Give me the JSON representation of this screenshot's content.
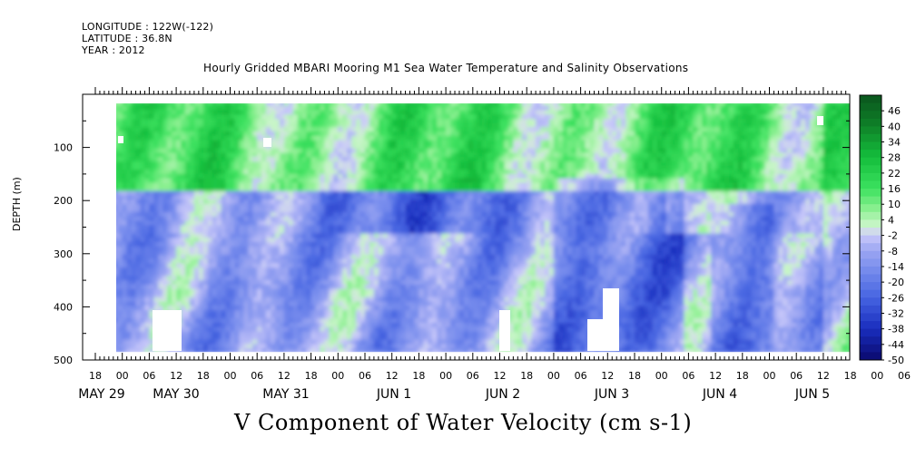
{
  "header": {
    "longitude": "LONGITUDE : 122W(-122)",
    "latitude": "LATITUDE : 36.8N",
    "year": "YEAR : 2012"
  },
  "chart_data": {
    "type": "heatmap",
    "title": "Hourly Gridded MBARI Mooring M1 Sea Water Temperature and Salinity Observations",
    "xlabel": "",
    "ylabel": "DEPTH (m)",
    "bottom_title": "V Component of Water Velocity (cm s-1)",
    "x_hour_ticks": [
      "18",
      "00",
      "06",
      "12",
      "18",
      "00",
      "06",
      "12",
      "18",
      "00",
      "06",
      "12",
      "18",
      "00",
      "06",
      "12",
      "18",
      "00",
      "06",
      "12",
      "18",
      "00",
      "06",
      "12",
      "18",
      "00",
      "06",
      "12",
      "18",
      "00",
      "06",
      "12"
    ],
    "x_date_labels": [
      "MAY 29",
      "MAY 30",
      "MAY 31",
      "JUN  1",
      "JUN  2",
      "JUN  3",
      "JUN  4",
      "JUN  5"
    ],
    "y_ticks": [
      100,
      200,
      300,
      400,
      500
    ],
    "ylim": [
      500,
      0
    ],
    "colorbar": {
      "labels": [
        "46",
        "40",
        "34",
        "28",
        "22",
        "16",
        "10",
        "4",
        "-2",
        "-8",
        "-14",
        "-20",
        "-26",
        "-32",
        "-38",
        "-44",
        "-50"
      ],
      "range": [
        -50,
        52
      ]
    }
  }
}
